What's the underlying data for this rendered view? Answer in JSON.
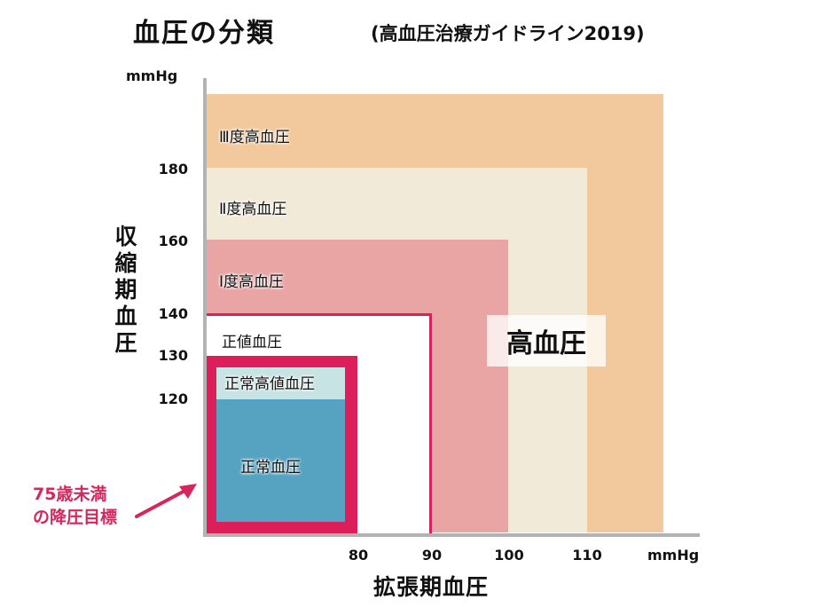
{
  "chart_data": {
    "type": "area",
    "title": "血圧の分類",
    "subtitle": "(高血圧治療ガイドライン2019)",
    "ylabel": "収縮期血圧",
    "xlabel": "拡張期血圧",
    "y_unit": "mmHg",
    "x_unit": "mmHg",
    "y_ticks": [
      "180",
      "160",
      "140",
      "130",
      "120"
    ],
    "x_ticks": [
      "80",
      "90",
      "100",
      "110"
    ],
    "zones": [
      {
        "name": "Ⅲ度高血圧",
        "systolic_min": 180,
        "diastolic_min": 110,
        "color": "#f2c99c"
      },
      {
        "name": "Ⅱ度高血圧",
        "systolic_range": [
          160,
          179
        ],
        "diastolic_range": [
          100,
          109
        ],
        "color": "#f2ead9"
      },
      {
        "name": "Ⅰ度高血圧",
        "systolic_range": [
          140,
          159
        ],
        "diastolic_range": [
          90,
          99
        ],
        "color": "#e9a4a4"
      },
      {
        "name": "正値血圧",
        "systolic_range": [
          130,
          139
        ],
        "diastolic_range": [
          80,
          89
        ],
        "color": "#ffffff"
      },
      {
        "name": "正常高値血圧",
        "systolic_range": [
          120,
          129
        ],
        "diastolic_max": 79,
        "color": "#c8e3e3"
      },
      {
        "name": "正常血圧",
        "systolic_max": 119,
        "diastolic_max": 79,
        "color": "#55a2c1"
      }
    ],
    "group_label": "高血圧",
    "annotation": "75歳未満の降圧目標",
    "colors": {
      "target_frame": "#dc1f5a",
      "annotation": "#d6265b",
      "axis": "#b3b3b3"
    }
  }
}
